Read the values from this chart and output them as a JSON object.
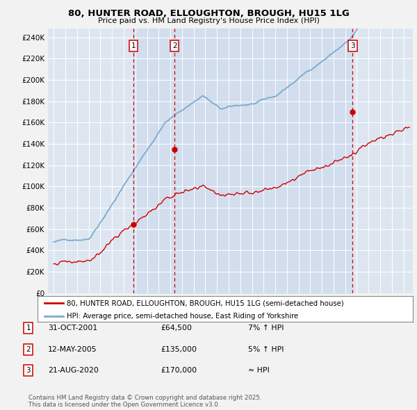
{
  "title_line1": "80, HUNTER ROAD, ELLOUGHTON, BROUGH, HU15 1LG",
  "title_line2": "Price paid vs. HM Land Registry's House Price Index (HPI)",
  "background_color": "#f0f0f0",
  "plot_bg_color": "#dde6f0",
  "yticks": [
    0,
    20000,
    40000,
    60000,
    80000,
    100000,
    120000,
    140000,
    160000,
    180000,
    200000,
    220000,
    240000
  ],
  "ytick_labels": [
    "£0",
    "£20K",
    "£40K",
    "£60K",
    "£80K",
    "£100K",
    "£120K",
    "£140K",
    "£160K",
    "£180K",
    "£200K",
    "£220K",
    "£240K"
  ],
  "xmin": 1994.5,
  "xmax": 2025.8,
  "ymin": 0,
  "ymax": 248000,
  "sale_dates": [
    2001.83,
    2005.36,
    2020.64
  ],
  "sale_prices": [
    64500,
    135000,
    170000
  ],
  "sale_labels": [
    "1",
    "2",
    "3"
  ],
  "legend_entries": [
    "80, HUNTER ROAD, ELLOUGHTON, BROUGH, HU15 1LG (semi-detached house)",
    "HPI: Average price, semi-detached house, East Riding of Yorkshire"
  ],
  "annotation_rows": [
    {
      "label": "1",
      "date": "31-OCT-2001",
      "price": "£64,500",
      "change": "7% ↑ HPI"
    },
    {
      "label": "2",
      "date": "12-MAY-2005",
      "price": "£135,000",
      "change": "5% ↑ HPI"
    },
    {
      "label": "3",
      "date": "21-AUG-2020",
      "price": "£170,000",
      "change": "≈ HPI"
    }
  ],
  "footer": "Contains HM Land Registry data © Crown copyright and database right 2025.\nThis data is licensed under the Open Government Licence v3.0.",
  "hpi_color": "#7aaad0",
  "price_color": "#cc0000",
  "dashed_line_color": "#cc0000",
  "shade_color": "#c8d8ee"
}
